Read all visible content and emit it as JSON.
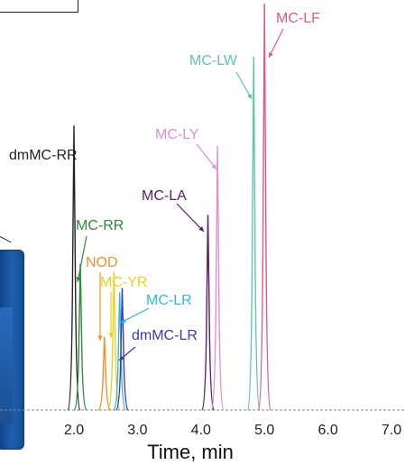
{
  "chart_data": {
    "type": "line",
    "xlabel": "Time, min",
    "x_ticks": [
      "2.0",
      "3.0",
      "4.0",
      "5.0",
      "6.0",
      "7.0"
    ],
    "xlim": [
      1.1,
      7.2
    ],
    "ylim": [
      0,
      1.0
    ],
    "grid": false,
    "peaks": [
      {
        "name": "dmMC-RR",
        "rt": 2.0,
        "height": 0.7,
        "color": "#222222"
      },
      {
        "name": "MC-RR",
        "rt": 2.1,
        "height": 0.36,
        "color": "#2e8b3a"
      },
      {
        "name": "NOD",
        "rt": 2.48,
        "height": 0.18,
        "color": "#f0922a"
      },
      {
        "name": "MC-YR",
        "rt": 2.63,
        "height": 0.34,
        "color": "#e8d21e"
      },
      {
        "name": "MC-LR",
        "rt": 2.72,
        "height": 0.29,
        "color": "#2fb7e6"
      },
      {
        "name": "dmMC-LR",
        "rt": 2.76,
        "height": 0.3,
        "color": "#3a3ab8"
      },
      {
        "name": "MC-LA",
        "rt": 4.11,
        "height": 0.48,
        "color": "#5a1a6e"
      },
      {
        "name": "MC-LY",
        "rt": 4.26,
        "height": 0.65,
        "color": "#e08fd0"
      },
      {
        "name": "MC-LW",
        "rt": 4.83,
        "height": 0.87,
        "color": "#5ec4b0"
      },
      {
        "name": "MC-LF",
        "rt": 5.0,
        "height": 1.0,
        "color": "#e05a7a"
      }
    ],
    "labels": [
      {
        "text": "dmMC-RR",
        "color": "#222222"
      },
      {
        "text": "MC-RR",
        "color": "#2e8b3a"
      },
      {
        "text": "NOD",
        "color": "#f0922a"
      },
      {
        "text": "MC-YR",
        "color": "#e8d21e"
      },
      {
        "text": "MC-LR",
        "color": "#2fb7e6"
      },
      {
        "text": "dmMC-LR",
        "color": "#3a3ab8"
      },
      {
        "text": "MC-LA",
        "color": "#5a1a6e"
      },
      {
        "text": "MC-LY",
        "color": "#e08fd0"
      },
      {
        "text": "MC-LW",
        "color": "#5ec4b0"
      },
      {
        "text": "MC-LF",
        "color": "#e05a7a"
      }
    ]
  }
}
